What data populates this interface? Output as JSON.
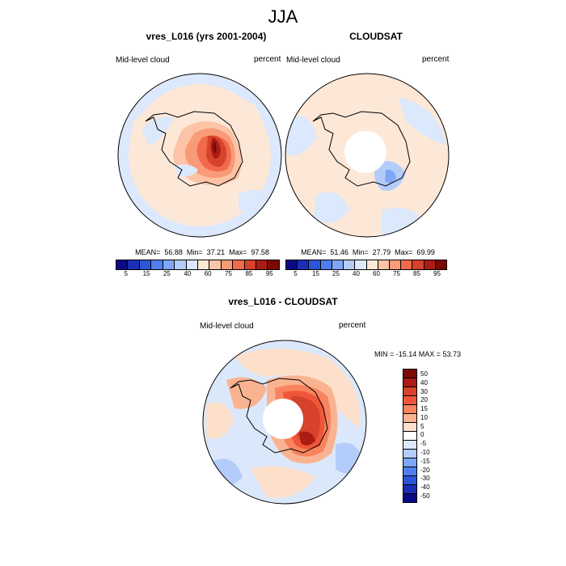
{
  "title": "JJA",
  "panels": [
    {
      "title": "vres_L016 (yrs 2001-2004)",
      "left_label": "Mid-level cloud",
      "right_label": "percent",
      "stats": "MEAN=  56.88  Min=  37.21  Max=  97.58"
    },
    {
      "title": "CLOUDSAT",
      "left_label": "Mid-level cloud",
      "right_label": "percent",
      "stats": "MEAN=  51.46  Min=  27.79  Max=  69.99"
    }
  ],
  "diff": {
    "title": "vres_L016 - CLOUDSAT",
    "left_label": "Mid-level cloud",
    "right_label": "percent",
    "stats": "MIN = -15.14 MAX =  53.73"
  },
  "colorbar_abs": {
    "colors": [
      "#0a0a86",
      "#1b2fb5",
      "#2c56d9",
      "#4f7fef",
      "#7ea6f6",
      "#b4ccf9",
      "#dce8fb",
      "#fde8d8",
      "#fcc3a6",
      "#f99b78",
      "#f16a4b",
      "#d6422c",
      "#ab1c14",
      "#7b0a04"
    ],
    "ticks": [
      "5",
      "15",
      "25",
      "40",
      "60",
      "75",
      "85",
      "95"
    ]
  },
  "colorbar_diff": {
    "colors": [
      "#7b0a04",
      "#ab1c14",
      "#d6422c",
      "#f0573a",
      "#f7845f",
      "#fab391",
      "#fde0cc",
      "#ffffff",
      "#dbe8fb",
      "#b4ccf9",
      "#7ea6f6",
      "#4f7fef",
      "#2c56d9",
      "#1b2fb5",
      "#0a0a86"
    ],
    "ticks": [
      "50",
      "40",
      "30",
      "20",
      "15",
      "10",
      "5",
      "0",
      "-5",
      "-10",
      "-15",
      "-20",
      "-30",
      "-40",
      "-50"
    ]
  }
}
